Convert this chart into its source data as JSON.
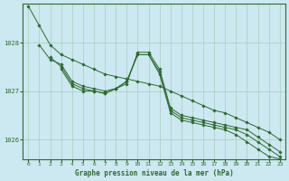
{
  "background_color": "#cce8f0",
  "grid_color": "#aaccc0",
  "line_color": "#2d6a2d",
  "marker_color": "#2d6a2d",
  "xlabel": "Graphe pression niveau de la mer (hPa)",
  "ylim": [
    1025.6,
    1028.8
  ],
  "xlim": [
    -0.5,
    23.5
  ],
  "yticks": [
    1026,
    1027,
    1028
  ],
  "xticks": [
    0,
    1,
    2,
    3,
    4,
    5,
    6,
    7,
    8,
    9,
    10,
    11,
    12,
    13,
    14,
    15,
    16,
    17,
    18,
    19,
    20,
    21,
    22,
    23
  ],
  "series": [
    {
      "x": [
        0,
        1,
        2,
        3,
        4,
        5,
        6,
        7,
        8,
        9,
        10,
        11,
        12,
        13,
        14,
        15,
        16,
        17,
        18,
        19,
        20,
        21,
        22,
        23
      ],
      "y": [
        1028.75,
        1028.35,
        1027.95,
        1027.75,
        1027.65,
        1027.55,
        1027.45,
        1027.35,
        1027.3,
        1027.25,
        1027.2,
        1027.15,
        1027.1,
        1027.0,
        1026.9,
        1026.8,
        1026.7,
        1026.6,
        1026.55,
        1026.45,
        1026.35,
        1026.25,
        1026.15,
        1026.0
      ]
    },
    {
      "x": [
        1,
        2,
        3,
        4,
        5,
        6,
        7,
        8,
        9,
        10,
        11,
        12,
        13,
        14,
        15,
        16,
        17,
        18,
        19,
        20,
        21,
        22,
        23
      ],
      "y": [
        1027.95,
        1027.65,
        1027.55,
        1027.2,
        1027.1,
        1027.05,
        1027.0,
        1027.05,
        1027.15,
        1027.8,
        1027.8,
        1027.45,
        1026.65,
        1026.5,
        1026.45,
        1026.4,
        1026.35,
        1026.3,
        1026.25,
        1026.2,
        1026.05,
        1025.9,
        1025.75
      ]
    },
    {
      "x": [
        2,
        3,
        4,
        5,
        6,
        7,
        8,
        9,
        10,
        11,
        12,
        13,
        14,
        15,
        16,
        17,
        18,
        19,
        20,
        21,
        22,
        23
      ],
      "y": [
        1027.7,
        1027.5,
        1027.15,
        1027.05,
        1027.0,
        1026.95,
        1027.05,
        1027.2,
        1027.75,
        1027.75,
        1027.4,
        1026.6,
        1026.45,
        1026.4,
        1026.35,
        1026.3,
        1026.25,
        1026.2,
        1026.1,
        1025.95,
        1025.8,
        1025.65
      ]
    },
    {
      "x": [
        3,
        4,
        5,
        6,
        7,
        8,
        9,
        10,
        11,
        12,
        13,
        14,
        15,
        16,
        17,
        18,
        19,
        20,
        21,
        22,
        23
      ],
      "y": [
        1027.45,
        1027.1,
        1027.0,
        1027.0,
        1026.95,
        1027.05,
        1027.2,
        1027.75,
        1027.75,
        1027.35,
        1026.55,
        1026.4,
        1026.35,
        1026.3,
        1026.25,
        1026.2,
        1026.1,
        1025.95,
        1025.8,
        1025.65,
        1025.6
      ]
    }
  ]
}
